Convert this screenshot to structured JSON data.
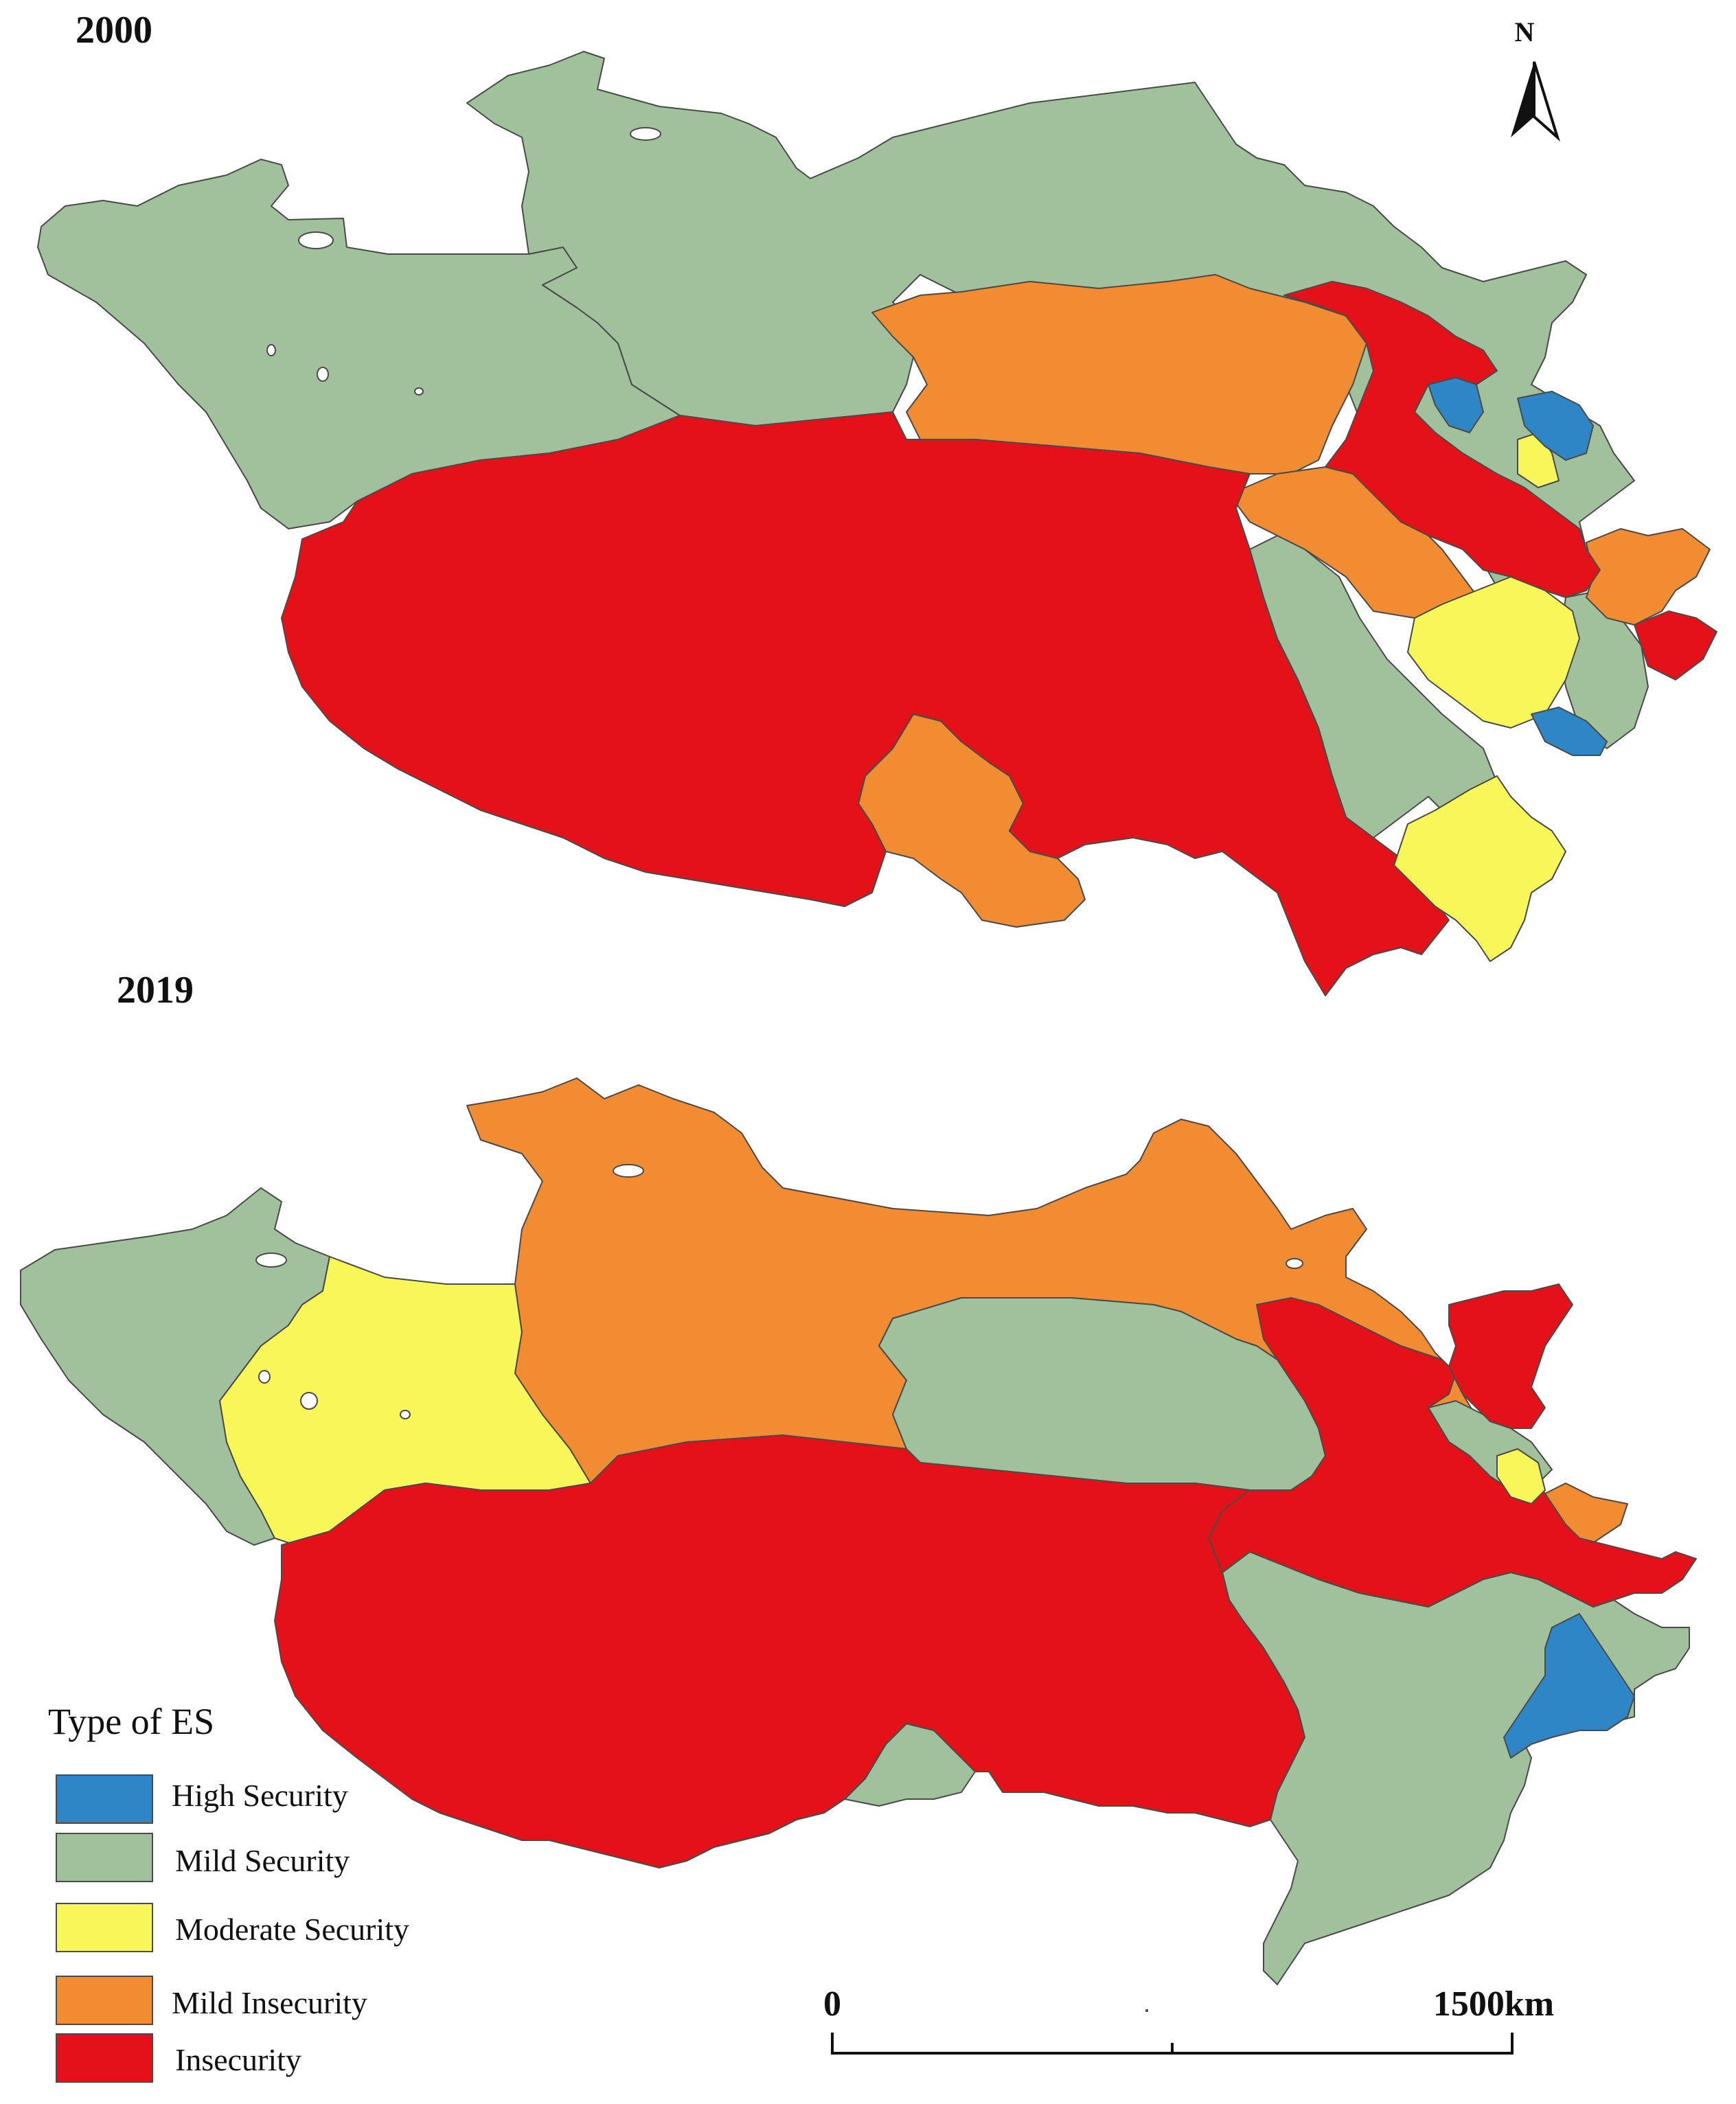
{
  "panels": [
    {
      "id": "panel-2000",
      "year": "2000"
    },
    {
      "id": "panel-2019",
      "year": "2019"
    }
  ],
  "north_arrow": {
    "letter": "N"
  },
  "legend": {
    "title": "Type of ES",
    "classes": [
      {
        "key": "high",
        "label": "High Security",
        "color": "#2f86c6"
      },
      {
        "key": "mild",
        "label": "Mild Security",
        "color": "#a1c09c"
      },
      {
        "key": "moderate",
        "label": "Moderate Security",
        "color": "#f7f75a"
      },
      {
        "key": "mild_insecurity",
        "label": "Mild Insecurity",
        "color": "#f28c33"
      },
      {
        "key": "insecurity",
        "label": "Insecurity",
        "color": "#e41218"
      }
    ]
  },
  "scale_bar": {
    "start_label": "0",
    "end_label": "1500km"
  }
}
